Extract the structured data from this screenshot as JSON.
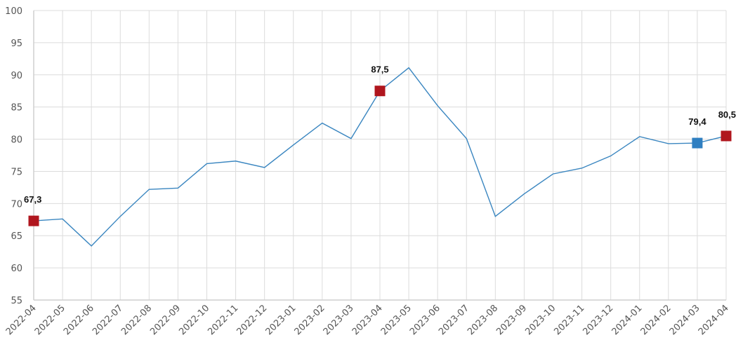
{
  "chart_data": {
    "type": "line",
    "title": "",
    "xlabel": "",
    "ylabel": "",
    "ylim": [
      55,
      100
    ],
    "y_ticks": [
      55,
      60,
      65,
      70,
      75,
      80,
      85,
      90,
      95,
      100
    ],
    "grid": true,
    "x": [
      "2022-04",
      "2022-05",
      "2022-06",
      "2022-07",
      "2022-08",
      "2022-09",
      "2022-10",
      "2022-11",
      "2022-12",
      "2023-01",
      "2023-02",
      "2023-03",
      "2023-04",
      "2023-05",
      "2023-06",
      "2023-07",
      "2023-08",
      "2023-09",
      "2023-10",
      "2023-11",
      "2023-12",
      "2024-01",
      "2024-02",
      "2024-03",
      "2024-04"
    ],
    "series": [
      {
        "color": "#3a86c0",
        "values": [
          67.3,
          67.6,
          63.4,
          68.0,
          72.2,
          72.4,
          76.2,
          76.6,
          75.6,
          79.1,
          82.5,
          80.1,
          87.5,
          91.1,
          85.2,
          80.1,
          68.0,
          71.5,
          74.6,
          75.5,
          77.4,
          80.4,
          79.3,
          79.4,
          80.5
        ]
      }
    ],
    "highlighted_points": [
      {
        "x": "2022-04",
        "value": 67.3,
        "label": "67,3",
        "color": "#b0161e"
      },
      {
        "x": "2023-04",
        "value": 87.5,
        "label": "87,5",
        "color": "#b0161e"
      },
      {
        "x": "2024-03",
        "value": 79.4,
        "label": "79,4",
        "color": "#2f7fc1"
      },
      {
        "x": "2024-04",
        "value": 80.5,
        "label": "80,5",
        "color": "#b0161e"
      }
    ]
  }
}
